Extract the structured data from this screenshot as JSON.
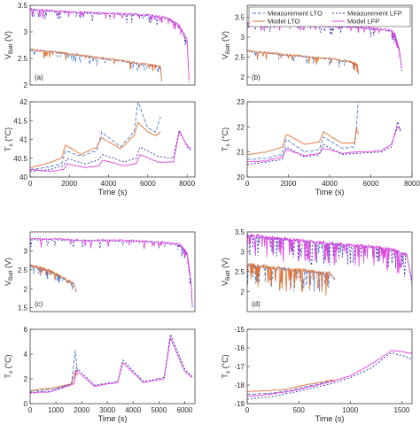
{
  "colors": {
    "meas_lto": "#4a78c9",
    "meas_lfp": "#3030b0",
    "model_lto": "#e07030",
    "model_lfp": "#e040e0",
    "alt_meas": "#4d4dd0",
    "alt_model": "#e05ad0"
  },
  "legend": {
    "meas_lto": "Measurement LTO",
    "meas_lfp": "Measurement LFP",
    "model_lto": "Model LTO",
    "model_lfp": "Model LFP"
  },
  "chart_data": [
    {
      "type": "line",
      "panel": "(a)",
      "ylabel_main": "V",
      "ylabel_sub": "Batt",
      "ylabel_tail": " (V)",
      "xlim": [
        0,
        8400
      ],
      "ylim": [
        2,
        3.5
      ],
      "yticks": [
        "2",
        "2.5",
        "3",
        "3.5"
      ],
      "xticks": [],
      "series": [
        {
          "key": "meas_lto",
          "x": [
            0,
            1000,
            2000,
            3000,
            4000,
            5000,
            6000,
            6650,
            6700
          ],
          "y": [
            2.66,
            2.63,
            2.58,
            2.53,
            2.48,
            2.43,
            2.38,
            2.33,
            2.07
          ]
        },
        {
          "key": "model_lto",
          "x": [
            0,
            1000,
            2000,
            3000,
            4000,
            5000,
            6000,
            6650,
            6700
          ],
          "y": [
            2.67,
            2.63,
            2.59,
            2.54,
            2.49,
            2.44,
            2.39,
            2.34,
            2.08
          ]
        },
        {
          "key": "meas_lfp",
          "x": [
            0,
            1000,
            2000,
            3000,
            4000,
            5000,
            6000,
            7000,
            7600,
            8000,
            8100
          ],
          "y": [
            3.42,
            3.39,
            3.37,
            3.35,
            3.34,
            3.33,
            3.31,
            3.25,
            3.1,
            2.8,
            2.05
          ]
        },
        {
          "key": "model_lfp",
          "x": [
            0,
            1000,
            2000,
            3000,
            4000,
            5000,
            6000,
            7000,
            7600,
            8000,
            8100
          ],
          "y": [
            3.44,
            3.4,
            3.38,
            3.36,
            3.35,
            3.34,
            3.32,
            3.27,
            3.12,
            2.85,
            2.1
          ]
        }
      ]
    },
    {
      "type": "line",
      "panel": "",
      "ylabel_main": "T",
      "ylabel_sub": "s",
      "ylabel_tail": " (°C)",
      "xlim": [
        0,
        8400
      ],
      "ylim": [
        40,
        42
      ],
      "yticks": [
        "40",
        "40.5",
        "41",
        "41.5",
        "42"
      ],
      "xticks": [
        "0",
        "2000",
        "4000",
        "6000",
        "8000"
      ],
      "xlabel": "Time (s)",
      "series": [
        {
          "key": "meas_lto",
          "x": [
            0,
            800,
            1600,
            1800,
            2600,
            3400,
            3650,
            4600,
            5300,
            5500,
            6000,
            6400,
            6650
          ],
          "y": [
            40.2,
            40.25,
            40.35,
            40.7,
            40.55,
            40.7,
            41.2,
            40.8,
            41.2,
            42.0,
            41.3,
            41.2,
            41.6
          ]
        },
        {
          "key": "model_lto",
          "x": [
            0,
            800,
            1600,
            1800,
            2600,
            3400,
            3650,
            4600,
            5300,
            5500,
            6000,
            6400,
            6650
          ],
          "y": [
            40.25,
            40.35,
            40.5,
            40.85,
            40.6,
            40.8,
            41.05,
            40.75,
            41.1,
            41.45,
            41.2,
            41.1,
            41.2
          ]
        },
        {
          "key": "meas_lfp",
          "x": [
            0,
            1000,
            1700,
            1900,
            2800,
            3500,
            3700,
            4800,
            5400,
            5600,
            6500,
            7300,
            7600,
            8000,
            8200
          ],
          "y": [
            40.15,
            40.2,
            40.3,
            40.5,
            40.35,
            40.45,
            40.6,
            40.4,
            40.5,
            40.8,
            40.55,
            40.5,
            41.25,
            40.8,
            40.7
          ]
        },
        {
          "key": "model_lfp",
          "x": [
            0,
            1000,
            1700,
            1900,
            2800,
            3500,
            3700,
            4800,
            5400,
            5600,
            6500,
            7300,
            7600,
            8000,
            8200
          ],
          "y": [
            40.2,
            40.15,
            40.2,
            40.35,
            40.25,
            40.3,
            40.45,
            40.3,
            40.35,
            40.6,
            40.4,
            40.4,
            41.2,
            40.85,
            40.75
          ]
        }
      ]
    },
    {
      "type": "line",
      "panel": "(b)",
      "ylabel_main": "V",
      "ylabel_sub": "Batt",
      "ylabel_tail": " (V)",
      "xlim": [
        0,
        8000
      ],
      "ylim": [
        1.8,
        3.8
      ],
      "yticks": [
        "2",
        "2.5",
        "3",
        "3.5"
      ],
      "xticks": [],
      "series": [
        {
          "key": "meas_lto",
          "x": [
            0,
            1000,
            2000,
            3000,
            4000,
            5000,
            5350,
            5400
          ],
          "y": [
            2.65,
            2.6,
            2.55,
            2.5,
            2.45,
            2.38,
            2.3,
            2.05
          ]
        },
        {
          "key": "model_lto",
          "x": [
            0,
            1000,
            2000,
            3000,
            4000,
            5000,
            5350,
            5400
          ],
          "y": [
            2.66,
            2.61,
            2.56,
            2.51,
            2.46,
            2.39,
            2.31,
            2.06
          ]
        },
        {
          "key": "meas_lfp",
          "x": [
            0,
            1000,
            2000,
            3000,
            4000,
            5000,
            6000,
            7000,
            7200,
            7400,
            7500
          ],
          "y": [
            3.35,
            3.32,
            3.3,
            3.28,
            3.26,
            3.25,
            3.22,
            3.15,
            3.0,
            2.6,
            2.15
          ]
        },
        {
          "key": "model_lfp",
          "x": [
            0,
            1000,
            2000,
            3000,
            4000,
            5000,
            6000,
            7000,
            7200,
            7400,
            7500
          ],
          "y": [
            3.37,
            3.34,
            3.31,
            3.29,
            3.27,
            3.26,
            3.23,
            3.17,
            3.05,
            2.65,
            2.2
          ]
        }
      ]
    },
    {
      "type": "line",
      "panel": "",
      "ylabel_main": "T",
      "ylabel_sub": "s",
      "ylabel_tail": " (°C)",
      "xlim": [
        0,
        8000
      ],
      "ylim": [
        20,
        23
      ],
      "yticks": [
        "20",
        "21",
        "22",
        "23"
      ],
      "xticks": [
        "0",
        "2000",
        "4000",
        "6000",
        "8000"
      ],
      "xlabel": "Time (s)",
      "series": [
        {
          "key": "meas_lto",
          "x": [
            0,
            900,
            1700,
            1900,
            2800,
            3500,
            3700,
            4600,
            5200,
            5300,
            5400
          ],
          "y": [
            20.7,
            20.75,
            20.9,
            21.5,
            21.0,
            21.1,
            21.6,
            21.15,
            21.2,
            21.9,
            23.3
          ]
        },
        {
          "key": "model_lto",
          "x": [
            0,
            900,
            1700,
            1900,
            2800,
            3500,
            3700,
            4600,
            5200,
            5300,
            5400
          ],
          "y": [
            20.9,
            21.0,
            21.2,
            21.7,
            21.3,
            21.4,
            21.8,
            21.35,
            21.35,
            21.95,
            21.7
          ]
        },
        {
          "key": "meas_lfp",
          "x": [
            0,
            900,
            1700,
            1900,
            2800,
            3500,
            3700,
            4600,
            5400,
            6500,
            7000,
            7300,
            7450
          ],
          "y": [
            20.5,
            20.6,
            20.7,
            21.2,
            20.8,
            20.9,
            21.3,
            20.9,
            20.95,
            21.0,
            21.2,
            22.2,
            21.8
          ]
        },
        {
          "key": "model_lfp",
          "x": [
            0,
            900,
            1700,
            1900,
            2800,
            3500,
            3700,
            4600,
            5400,
            6500,
            7000,
            7300,
            7450
          ],
          "y": [
            20.6,
            20.65,
            20.8,
            21.1,
            20.85,
            20.95,
            21.15,
            20.95,
            21.0,
            21.05,
            21.3,
            22.0,
            21.9
          ]
        }
      ]
    },
    {
      "type": "line",
      "panel": "(c)",
      "ylabel_main": "V",
      "ylabel_sub": "Batt",
      "ylabel_tail": " (V)",
      "xlim": [
        0,
        6400
      ],
      "ylim": [
        1.4,
        3.5
      ],
      "yticks": [
        "1.5",
        "2",
        "2.5",
        "3"
      ],
      "xticks": [],
      "series": [
        {
          "key": "meas_lto",
          "x": [
            0,
            400,
            800,
            1200,
            1700,
            1800
          ],
          "y": [
            2.6,
            2.55,
            2.45,
            2.3,
            2.12,
            1.9
          ]
        },
        {
          "key": "model_lto",
          "x": [
            0,
            400,
            800,
            1200,
            1700,
            1800
          ],
          "y": [
            2.62,
            2.56,
            2.47,
            2.32,
            2.14,
            1.92
          ]
        },
        {
          "key": "meas_lfp",
          "x": [
            0,
            1000,
            2000,
            3000,
            4000,
            5000,
            5800,
            6100,
            6250,
            6300
          ],
          "y": [
            3.3,
            3.29,
            3.27,
            3.26,
            3.25,
            3.22,
            3.15,
            2.9,
            2.1,
            1.5
          ]
        },
        {
          "key": "model_lfp",
          "x": [
            0,
            1000,
            2000,
            3000,
            4000,
            5000,
            5800,
            6100,
            6250,
            6300
          ],
          "y": [
            3.32,
            3.31,
            3.29,
            3.28,
            3.27,
            3.24,
            3.17,
            2.95,
            2.2,
            1.55
          ]
        }
      ]
    },
    {
      "type": "line",
      "panel": "",
      "ylabel_main": "T",
      "ylabel_sub": "s",
      "ylabel_tail": " (°C)",
      "xlim": [
        0,
        6400
      ],
      "ylim": [
        0,
        6
      ],
      "yticks": [
        "0",
        "2",
        "4",
        "6"
      ],
      "xticks": [
        "0",
        "1000",
        "2000",
        "3000",
        "4000",
        "5000",
        "6000"
      ],
      "xlabel": "Time (s)",
      "series": [
        {
          "key": "meas_lto",
          "x": [
            0,
            800,
            1600,
            1750,
            1850
          ],
          "y": [
            1.0,
            1.15,
            1.5,
            4.3,
            2.4
          ]
        },
        {
          "key": "model_lto",
          "x": [
            0,
            800,
            1600,
            1750,
            1850
          ],
          "y": [
            1.05,
            1.25,
            1.6,
            2.6,
            2.3
          ]
        },
        {
          "key": "meas_lfp",
          "x": [
            0,
            800,
            1700,
            1800,
            2500,
            3400,
            3600,
            4400,
            5200,
            5450,
            6000,
            6300
          ],
          "y": [
            0.9,
            1.0,
            1.7,
            2.9,
            1.5,
            1.8,
            3.5,
            1.8,
            2.1,
            5.6,
            2.8,
            2.2
          ]
        },
        {
          "key": "model_lfp",
          "x": [
            0,
            800,
            1700,
            1800,
            2500,
            3400,
            3600,
            4400,
            5200,
            5450,
            6000,
            6300
          ],
          "y": [
            0.85,
            0.95,
            1.6,
            2.7,
            1.4,
            1.7,
            3.3,
            1.7,
            2.0,
            5.3,
            2.6,
            2.1
          ]
        }
      ]
    },
    {
      "type": "line",
      "panel": "(d)",
      "ylabel_main": "V",
      "ylabel_sub": "Batt",
      "ylabel_tail": " (V)",
      "xlim": [
        0,
        1600
      ],
      "ylim": [
        1.5,
        3.5
      ],
      "yticks": [
        "2",
        "2.5",
        "3",
        "3.5"
      ],
      "xticks": [],
      "series": [
        {
          "key": "meas_lto",
          "x": [
            0,
            200,
            400,
            600,
            800,
            850
          ],
          "y": [
            2.68,
            2.6,
            2.55,
            2.5,
            2.45,
            2.3
          ]
        },
        {
          "key": "model_lto",
          "x": [
            0,
            200,
            400,
            600,
            800,
            850
          ],
          "y": [
            2.7,
            2.62,
            2.57,
            2.52,
            2.47,
            2.32
          ]
        },
        {
          "key": "meas_lfp",
          "x": [
            0,
            200,
            400,
            600,
            800,
            1000,
            1200,
            1400,
            1550,
            1600
          ],
          "y": [
            3.4,
            3.35,
            3.3,
            3.25,
            3.2,
            3.15,
            3.12,
            3.05,
            2.9,
            2.2
          ]
        },
        {
          "key": "model_lfp",
          "x": [
            0,
            200,
            400,
            600,
            800,
            1000,
            1200,
            1400,
            1550,
            1600
          ],
          "y": [
            3.42,
            3.37,
            3.32,
            3.27,
            3.22,
            3.17,
            3.14,
            3.07,
            2.92,
            2.25
          ]
        }
      ]
    },
    {
      "type": "line",
      "panel": "",
      "ylabel_main": "T",
      "ylabel_sub": "s",
      "ylabel_tail": " (°C)",
      "xlim": [
        0,
        1600
      ],
      "ylim": [
        -19,
        -15
      ],
      "yticks": [
        "-19",
        "-18",
        "-17",
        "-16",
        "-15"
      ],
      "xticks": [
        "0",
        "500",
        "1000",
        "1500"
      ],
      "xlabel": "Time (s)",
      "series": [
        {
          "key": "meas_lto",
          "x": [
            0,
            200,
            400,
            600,
            800,
            850
          ],
          "y": [
            -18.5,
            -18.45,
            -18.3,
            -18.05,
            -17.8,
            -17.8
          ]
        },
        {
          "key": "model_lto",
          "x": [
            0,
            200,
            400,
            600,
            800,
            850
          ],
          "y": [
            -18.35,
            -18.3,
            -18.2,
            -17.95,
            -17.75,
            -17.75
          ]
        },
        {
          "key": "meas_lfp",
          "x": [
            0,
            200,
            400,
            600,
            800,
            1000,
            1200,
            1400,
            1500,
            1600
          ],
          "y": [
            -18.75,
            -18.65,
            -18.45,
            -18.2,
            -17.95,
            -17.6,
            -17.1,
            -16.25,
            -16.4,
            -16.6
          ]
        },
        {
          "key": "model_lfp",
          "x": [
            0,
            200,
            400,
            600,
            800,
            1000,
            1200,
            1400,
            1500,
            1600
          ],
          "y": [
            -18.6,
            -18.5,
            -18.35,
            -18.1,
            -17.85,
            -17.5,
            -16.9,
            -16.15,
            -16.2,
            -16.3
          ]
        }
      ]
    }
  ]
}
